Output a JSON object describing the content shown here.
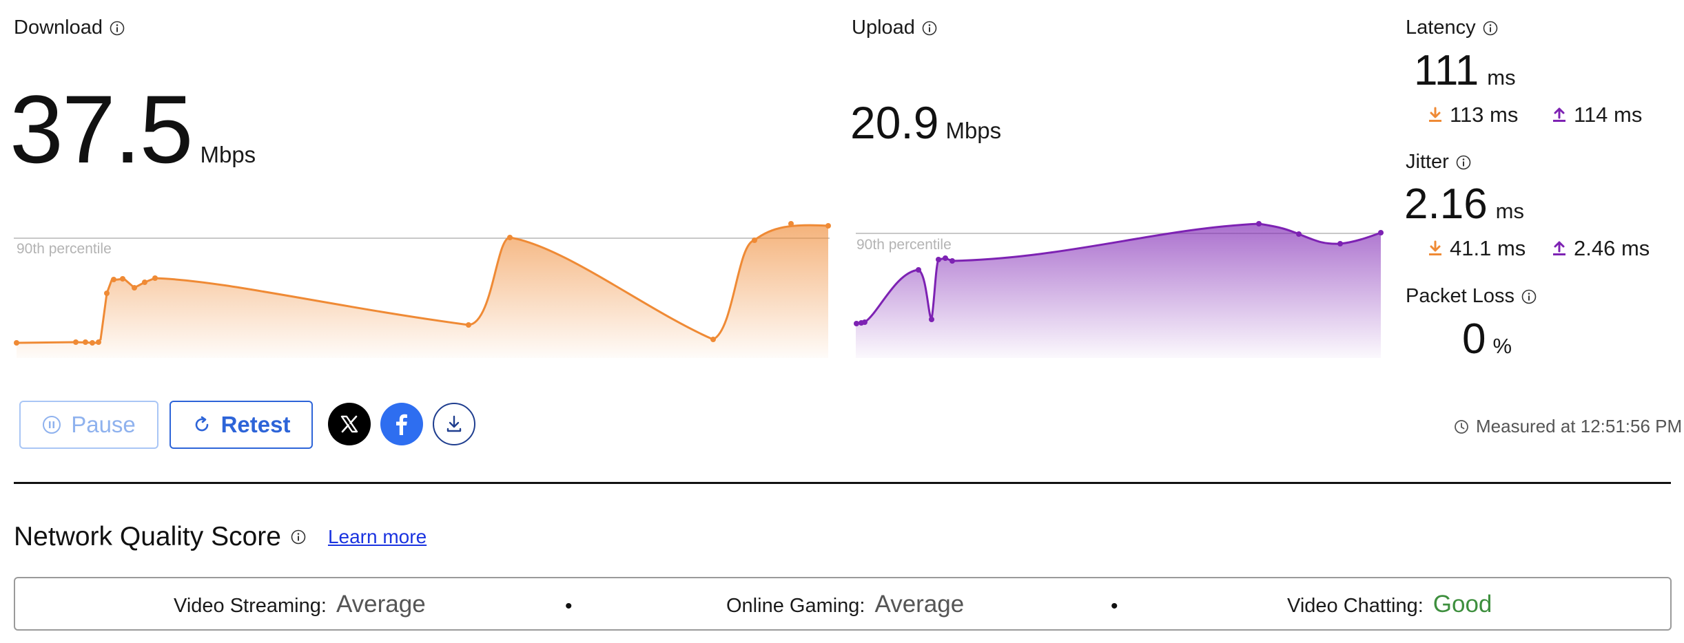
{
  "download": {
    "label": "Download",
    "value": "37.5",
    "unit": "Mbps",
    "percentile_label": "90th percentile",
    "color": "#ef8a35"
  },
  "upload": {
    "label": "Upload",
    "value": "20.9",
    "unit": "Mbps",
    "percentile_label": "90th percentile",
    "color": "#7d22b3"
  },
  "latency": {
    "label": "Latency",
    "value": "111",
    "unit": "ms",
    "down_value": "113 ms",
    "up_value": "114 ms"
  },
  "jitter": {
    "label": "Jitter",
    "value": "2.16",
    "unit": "ms",
    "down_value": "41.1 ms",
    "up_value": "2.46 ms"
  },
  "packet_loss": {
    "label": "Packet Loss",
    "value": "0",
    "unit": "%"
  },
  "controls": {
    "pause_label": "Pause",
    "retest_label": "Retest",
    "measured_text": "Measured at 12:51:56 PM"
  },
  "network_quality": {
    "title": "Network Quality Score",
    "learn_more": "Learn more",
    "items": [
      {
        "label": "Video Streaming:",
        "value": "Average"
      },
      {
        "label": "Online Gaming:",
        "value": "Average"
      },
      {
        "label": "Video Chatting:",
        "value": "Good"
      }
    ],
    "separator": "•"
  },
  "icons": {
    "info": "info-icon",
    "download_arrow": "download-arrow-icon",
    "upload_arrow": "upload-arrow-icon",
    "pause": "pause-icon",
    "retest": "refresh-icon",
    "x": "x-logo-icon",
    "facebook": "facebook-icon",
    "save": "download-icon",
    "clock": "clock-icon"
  },
  "colors": {
    "accent": "#2d64d8",
    "download": "#ef8a35",
    "upload": "#7d22b3",
    "good": "#3e8f3e",
    "facebook": "#2e6ef0"
  }
}
